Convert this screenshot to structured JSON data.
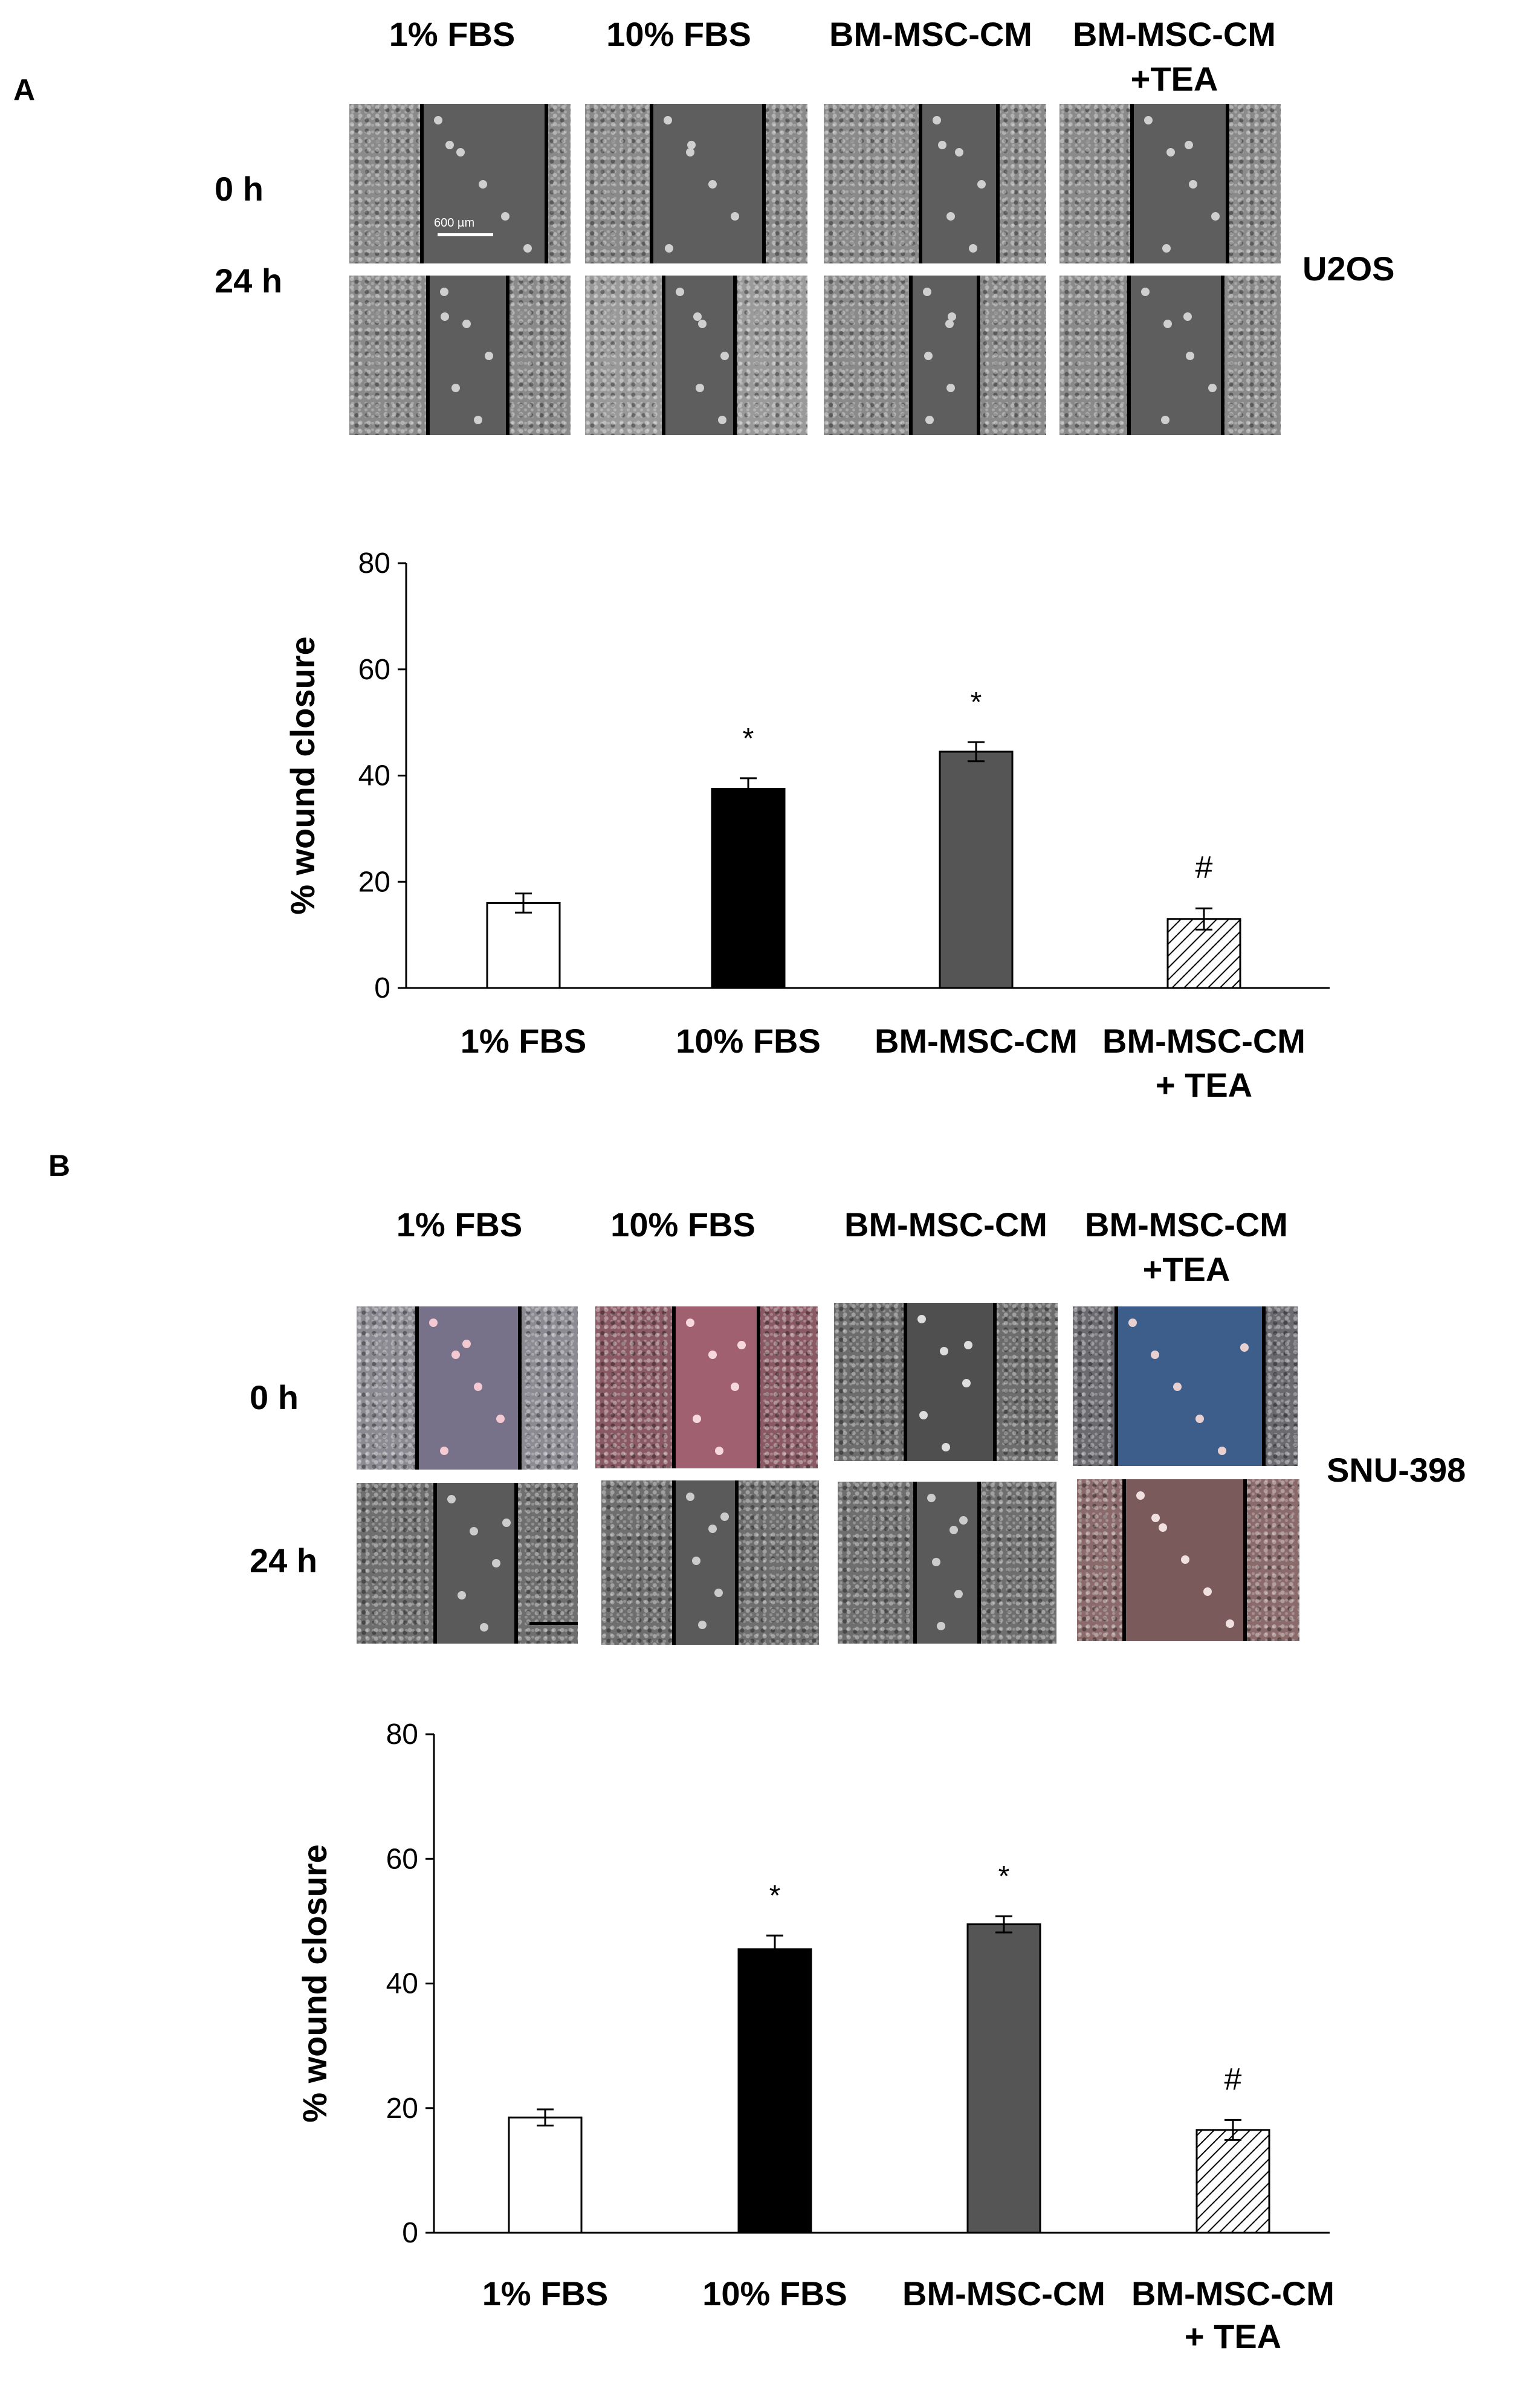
{
  "panel_a": {
    "letter": "A",
    "columns": [
      "1% FBS",
      "10% FBS",
      "BM-MSC-CM",
      "BM-MSC-CM\n+TEA"
    ],
    "rows": [
      "0 h",
      "24 h"
    ],
    "cell_line": "U2OS",
    "scale_text": "600 µm"
  },
  "panel_b": {
    "letter": "B",
    "columns": [
      "1% FBS",
      "10% FBS",
      "BM-MSC-CM",
      "BM-MSC-CM\n+TEA"
    ],
    "rows": [
      "0 h",
      "24 h"
    ],
    "cell_line": "SNU-398"
  },
  "colors": {
    "bar_1pct": "#ffffff",
    "bar_10pct": "#000000",
    "bar_bmmsc": "#555555",
    "bar_tea": "hatched"
  },
  "chart_data": [
    {
      "type": "bar",
      "panel": "A",
      "categories": [
        "1% FBS",
        "10% FBS",
        "BM-MSC-CM",
        "BM-MSC-CM\n+ TEA"
      ],
      "values": [
        16,
        37.5,
        44.5,
        13
      ],
      "errors": [
        1.8,
        2.0,
        1.8,
        2.0
      ],
      "annotations": [
        "",
        "*",
        "*",
        "#"
      ],
      "ylabel": "% wound closure",
      "ylim": [
        0,
        80
      ],
      "yticks": [
        "0",
        "20",
        "40",
        "60",
        "80"
      ],
      "grid": false
    },
    {
      "type": "bar",
      "panel": "B",
      "categories": [
        "1% FBS",
        "10% FBS",
        "BM-MSC-CM",
        "BM-MSC-CM\n+ TEA"
      ],
      "values": [
        18.5,
        45.5,
        49.5,
        16.5
      ],
      "errors": [
        1.3,
        2.2,
        1.3,
        1.6
      ],
      "annotations": [
        "",
        "*",
        "*",
        "#"
      ],
      "ylabel": "% wound closure",
      "ylim": [
        0,
        80
      ],
      "yticks": [
        "0",
        "20",
        "40",
        "60",
        "80"
      ],
      "grid": false
    }
  ]
}
